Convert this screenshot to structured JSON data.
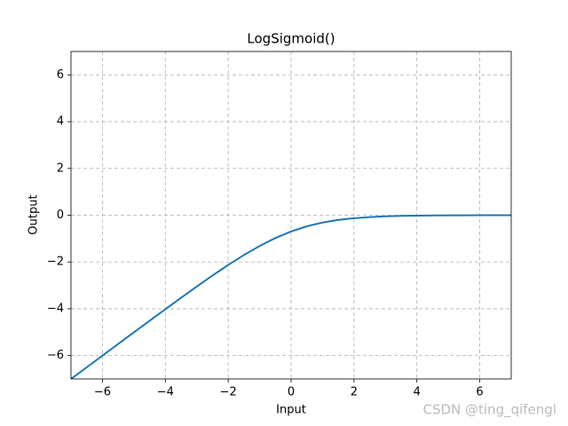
{
  "chart_data": {
    "type": "line",
    "title": "LogSigmoid()",
    "xlabel": "Input",
    "ylabel": "Output",
    "x": [
      -7,
      -6.5,
      -6,
      -5.5,
      -5,
      -4.5,
      -4,
      -3.5,
      -3,
      -2.5,
      -2,
      -1.5,
      -1,
      -0.5,
      0,
      0.5,
      1,
      1.5,
      2,
      2.5,
      3,
      3.5,
      4,
      4.5,
      5,
      5.5,
      6,
      6.5,
      7
    ],
    "series": [
      {
        "name": "LogSigmoid",
        "color": "#1f77b4",
        "values": [
          -7.001,
          -6.502,
          -6.002,
          -5.504,
          -5.007,
          -4.511,
          -4.018,
          -3.53,
          -3.049,
          -2.579,
          -2.127,
          -1.701,
          -1.313,
          -0.974,
          -0.693,
          -0.474,
          -0.313,
          -0.201,
          -0.127,
          -0.079,
          -0.049,
          -0.03,
          -0.018,
          -0.011,
          -0.007,
          -0.004,
          -0.002,
          -0.002,
          -0.001
        ]
      }
    ],
    "xlim": [
      -7,
      7
    ],
    "ylim": [
      -7,
      7
    ],
    "xticks": [
      {
        "value": -6,
        "label": "−6"
      },
      {
        "value": -4,
        "label": "−4"
      },
      {
        "value": -2,
        "label": "−2"
      },
      0,
      2,
      4,
      6
    ],
    "yticks": [
      {
        "value": -6,
        "label": "−6"
      },
      {
        "value": -4,
        "label": "−4"
      },
      {
        "value": -2,
        "label": "−2"
      },
      0,
      2,
      4,
      6
    ],
    "grid": true,
    "annotation": "CSDN @ting_qifengl"
  }
}
